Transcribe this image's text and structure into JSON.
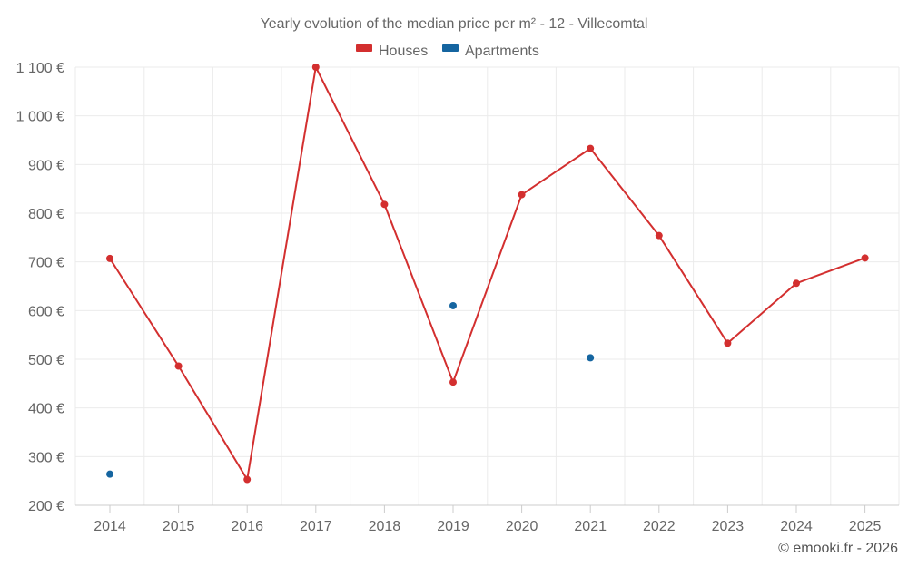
{
  "chart_data": {
    "type": "line",
    "title": "Yearly evolution of the median price per m² - 12 - Villecomtal",
    "categories": [
      "2014",
      "2015",
      "2016",
      "2017",
      "2018",
      "2019",
      "2020",
      "2021",
      "2022",
      "2023",
      "2024",
      "2025"
    ],
    "series": [
      {
        "name": "Houses",
        "color": "#d32f2f",
        "values": [
          707,
          486,
          253,
          1100,
          818,
          453,
          838,
          933,
          754,
          533,
          656,
          708
        ]
      },
      {
        "name": "Apartments",
        "color": "#1565a0",
        "values": [
          264,
          null,
          null,
          null,
          null,
          610,
          null,
          503,
          null,
          null,
          null,
          null
        ]
      }
    ],
    "ylim": [
      200,
      1100
    ],
    "yticks": [
      200,
      300,
      400,
      500,
      600,
      700,
      800,
      900,
      1000,
      1100
    ],
    "ytick_labels": [
      "200 €",
      "300 €",
      "400 €",
      "500 €",
      "600 €",
      "700 €",
      "800 €",
      "900 €",
      "1 000 €",
      "1 100 €"
    ],
    "xlabel": "",
    "ylabel": "",
    "grid": true,
    "legend_position": "top-center"
  },
  "credit": "© emooki.fr - 2026"
}
